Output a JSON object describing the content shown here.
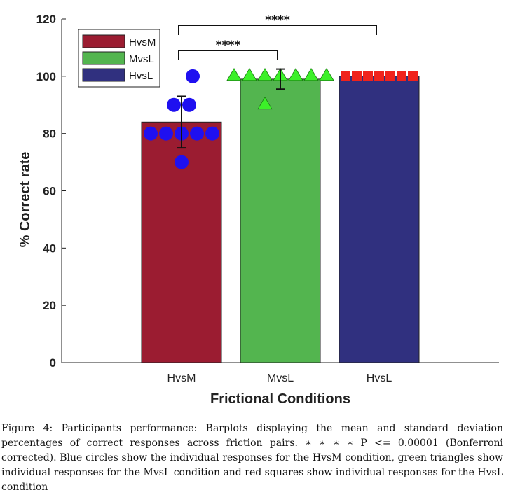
{
  "chart_data": {
    "type": "bar",
    "categories": [
      "HvsM",
      "MvsL",
      "HvsL"
    ],
    "values": [
      84,
      99,
      100
    ],
    "error": [
      9,
      3.5,
      0
    ],
    "colors": [
      "#9b1c31",
      "#53b54f",
      "#30307f"
    ],
    "xlabel": "Frictional Conditions",
    "ylabel": "% Correct rate",
    "ylim": [
      0,
      120
    ],
    "yticks": [
      0,
      20,
      40,
      60,
      80,
      100,
      120
    ],
    "grid": false,
    "legend": {
      "placement": "top-left",
      "entries": [
        "HvsM",
        "MvsL",
        "HvsL"
      ]
    },
    "individual_points": [
      {
        "category": "HvsM",
        "marker": "circle",
        "color": "#1f10f0",
        "values": [
          100,
          90,
          90,
          80,
          80,
          80,
          80,
          80,
          70
        ]
      },
      {
        "category": "MvsL",
        "marker": "triangle",
        "color": "#3cf029",
        "values": [
          100,
          100,
          100,
          100,
          100,
          100,
          100,
          90
        ]
      },
      {
        "category": "HvsL",
        "marker": "square",
        "color": "#f0221c",
        "values": [
          100,
          100,
          100,
          100,
          100,
          100,
          100
        ]
      }
    ],
    "significance": [
      {
        "from": "HvsM",
        "to": "MvsL",
        "label": "****"
      },
      {
        "from": "HvsM",
        "to": "HvsL",
        "label": "****"
      }
    ]
  },
  "caption": "Figure 4: Participants performance: Barplots displaying the mean and standard deviation percentages of correct responses across friction pairs. ∗ ∗ ∗ ∗ P <= 0.00001 (Bonferroni corrected). Blue circles show the individual responses for the HvsM condition, green triangles show individual responses for the MvsL condition and red squares show individual responses for the HvsL condition"
}
